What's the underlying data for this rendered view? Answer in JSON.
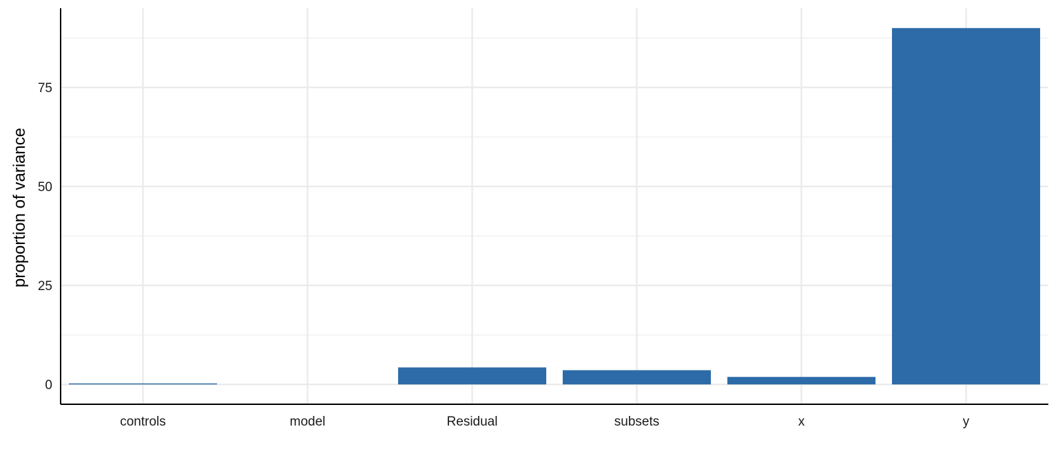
{
  "chart_data": {
    "type": "bar",
    "categories": [
      "controls",
      "model",
      "Residual",
      "subsets",
      "x",
      "y"
    ],
    "values": [
      0.2,
      0.0,
      4.3,
      3.6,
      1.9,
      90.0
    ],
    "title": "",
    "xlabel": "",
    "ylabel": "proportion of variance",
    "ylim": [
      -5,
      95
    ],
    "yticks": [
      0,
      25,
      50,
      75
    ],
    "grid": true,
    "legend": "none",
    "colors": {
      "bar": "#2d6ba8",
      "grid": "#ebebeb",
      "axis": "#000000"
    }
  }
}
